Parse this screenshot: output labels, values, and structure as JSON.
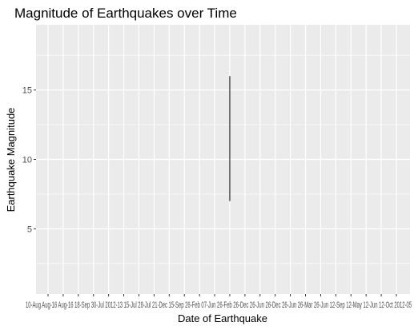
{
  "chart_data": {
    "type": "line",
    "title": "Magnitude of Earthquakes over Time",
    "xlabel": "Date of Earthquake",
    "ylabel": "Earthquake Magnitude",
    "ylim": [
      0.3,
      19.7
    ],
    "y_ticks": [
      5,
      10,
      15
    ],
    "x_tick_count": 24,
    "x_tick_labels_overlapping": "10-Aug Aug-16 Aug-16 18-Sep 30-Jul 2012-13 15-Jul 28-Jul 21-Dec 15-Sep 26-Feb 07-Jun 26-Feb 26-Dec 26-Jun 26-Dec 26-Jun 26-Mar 26-Jun 12-Sep 12-May 12-Jun 12-Oct 2012-05",
    "series": [
      {
        "x_position": 12,
        "values": [
          7.0,
          16.0
        ]
      }
    ],
    "grid": true,
    "panel_background": "#ebebeb",
    "grid_color": "#ffffff",
    "line_color": "#000000"
  }
}
